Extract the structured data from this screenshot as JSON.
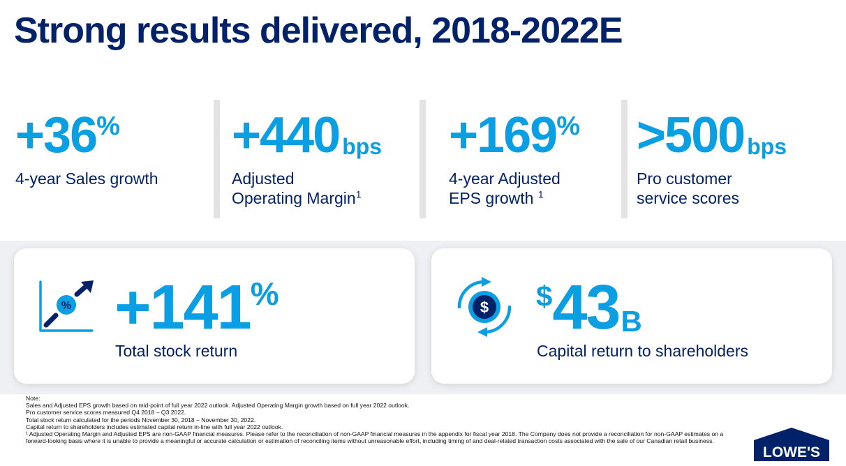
{
  "title": "Strong results delivered, 2018-2022E",
  "stats": [
    {
      "value": "+36",
      "suffix": "%",
      "label_lines": [
        "4-year Sales growth"
      ],
      "footnote": ""
    },
    {
      "value": "+440",
      "suffix": "bps",
      "label_lines": [
        "Adjusted",
        "Operating Margin"
      ],
      "footnote": "1"
    },
    {
      "value": "+169",
      "suffix": "%",
      "label_lines": [
        "4-year Adjusted",
        "EPS growth "
      ],
      "footnote": "1"
    },
    {
      "value": ">500",
      "suffix": "bps",
      "label_lines": [
        "Pro customer",
        "service scores"
      ],
      "footnote": ""
    }
  ],
  "cards": [
    {
      "icon": "stock-chart-percent-icon",
      "value": "+141",
      "suffix": "%",
      "label": "Total stock return"
    },
    {
      "icon": "dollar-cycle-icon",
      "prefix": "$",
      "value": "43",
      "suffix": "B",
      "label": "Capital return to shareholders"
    }
  ],
  "notes": {
    "heading": "Note:",
    "lines": [
      "Sales and Adjusted EPS growth based on mid-point of full year 2022 outlook. Adjusted Operating Margin growth based on full year 2022 outlook.",
      "Pro customer service scores measured Q4 2018 – Q3 2022.",
      "Total stock return calculated for the periods November 30, 2018 – November 30, 2022.",
      "Capital return to shareholders includes estimated capital return in-line with full year 2022 outlook.",
      "¹ Adjusted Operating Margin and Adjusted EPS are non-GAAP financial measures. Please refer to the reconciliation of non-GAAP financial measures in the appendix for fiscal year 2018. The Company does not provide a reconciliation for non-GAAP estimates on a forward-looking basis where it is unable to provide a meaningful or accurate calculation or estimation of reconciling items without unreasonable effort, including timing of and deal-related transaction costs associated with the sale of our Canadian retail business."
    ]
  },
  "logo": {
    "text": "LOWE'S"
  },
  "colors": {
    "navy": "#012169",
    "accent": "#0a9ee3",
    "divider": "#e3e3e3",
    "panel": "#eef0f3"
  }
}
